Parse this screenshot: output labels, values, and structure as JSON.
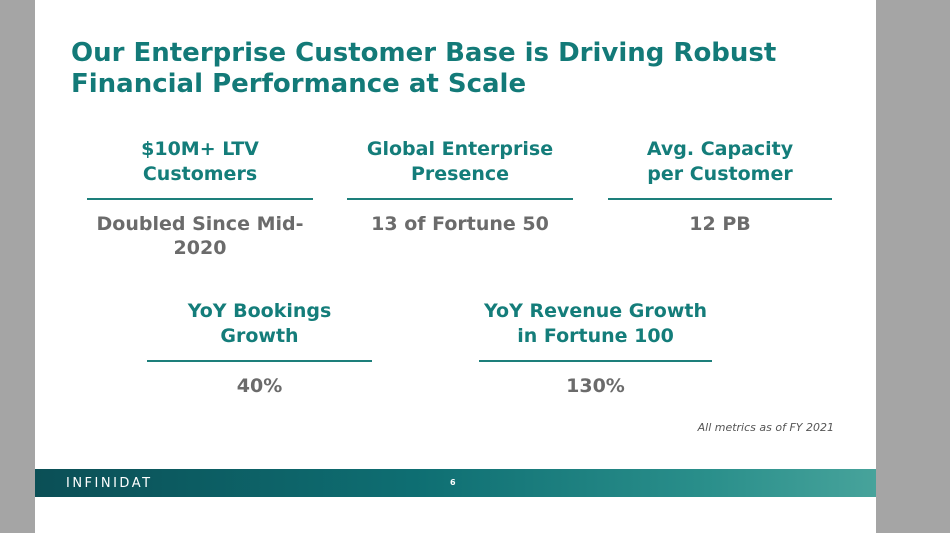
{
  "slide": {
    "title": "Our Enterprise Customer Base is Driving Robust\nFinancial Performance at Scale",
    "metrics_row1": [
      {
        "label": "$10M+ LTV\nCustomers",
        "value": "Doubled Since Mid-2020"
      },
      {
        "label": "Global Enterprise\nPresence",
        "value": "13 of Fortune 50"
      },
      {
        "label": "Avg. Capacity\nper Customer",
        "value": "12 PB"
      }
    ],
    "metrics_row2": [
      {
        "label": "YoY Bookings\nGrowth",
        "value": "40%"
      },
      {
        "label": "YoY Revenue Growth\nin Fortune 100",
        "value": "130%"
      }
    ],
    "footnote": "All metrics as of FY 2021",
    "footer": {
      "brand": "INFINIDAT",
      "page_number": "6"
    }
  },
  "colors": {
    "accent": "#137a78",
    "value_gray": "#6b6b6b",
    "outer_background": "#a5a5a5"
  }
}
